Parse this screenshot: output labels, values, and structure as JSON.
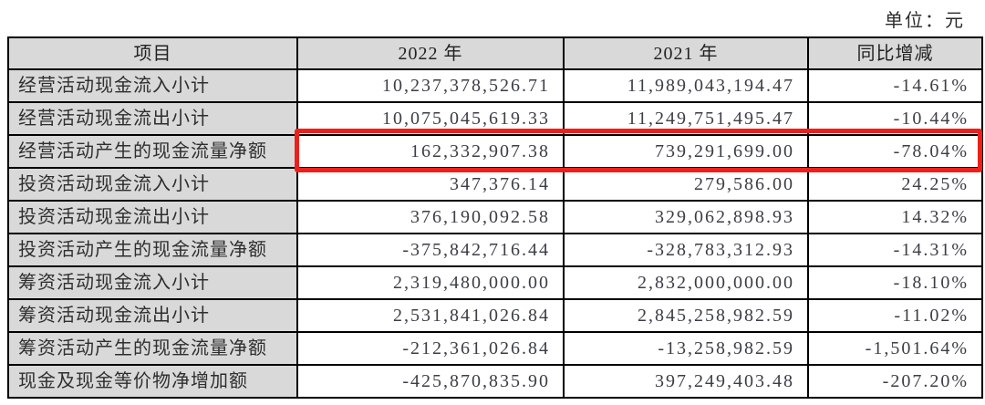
{
  "unit_label": "单位：元",
  "colors": {
    "highlight_red": "#ee1f1b",
    "header_bg": "#d9d9d9",
    "item_col_bg": "#d9d9d9",
    "value_cell_bg": "#ffffff",
    "border": "#000000",
    "text": "#333333"
  },
  "table": {
    "headers": [
      "项目",
      "2022 年",
      "2021 年",
      "同比增减"
    ],
    "rows": [
      {
        "item": "经营活动现金流入小计",
        "value_2022": "10,237,378,526.71",
        "value_2021": "11,989,043,194.47",
        "yoy_change": "-14.61%"
      },
      {
        "item": "经营活动现金流出小计",
        "value_2022": "10,075,045,619.33",
        "value_2021": "11,249,751,495.47",
        "yoy_change": "-10.44%"
      },
      {
        "item": "经营活动产生的现金流量净额",
        "value_2022": "162,332,907.38",
        "value_2021": "739,291,699.00",
        "yoy_change": "-78.04%"
      },
      {
        "item": "投资活动现金流入小计",
        "value_2022": "347,376.14",
        "value_2021": "279,586.00",
        "yoy_change": "24.25%"
      },
      {
        "item": "投资活动现金流出小计",
        "value_2022": "376,190,092.58",
        "value_2021": "329,062,898.93",
        "yoy_change": "14.32%"
      },
      {
        "item": "投资活动产生的现金流量净额",
        "value_2022": "-375,842,716.44",
        "value_2021": "-328,783,312.93",
        "yoy_change": "-14.31%"
      },
      {
        "item": "筹资活动现金流入小计",
        "value_2022": "2,319,480,000.00",
        "value_2021": "2,832,000,000.00",
        "yoy_change": "-18.10%"
      },
      {
        "item": "筹资活动现金流出小计",
        "value_2022": "2,531,841,026.84",
        "value_2021": "2,845,258,982.59",
        "yoy_change": "-11.02%"
      },
      {
        "item": "筹资活动产生的现金流量净额",
        "value_2022": "-212,361,026.84",
        "value_2021": "-13,258,982.59",
        "yoy_change": "-1,501.64%"
      },
      {
        "item": "现金及现金等价物净增加额",
        "value_2022": "-425,870,835.90",
        "value_2021": "397,249,403.48",
        "yoy_change": "-207.20%"
      }
    ]
  },
  "highlight": {
    "row_index": 2,
    "row_item": "经营活动产生的现金流量净额",
    "color": "#ee1f1b",
    "covers": "value columns of highlighted row"
  }
}
